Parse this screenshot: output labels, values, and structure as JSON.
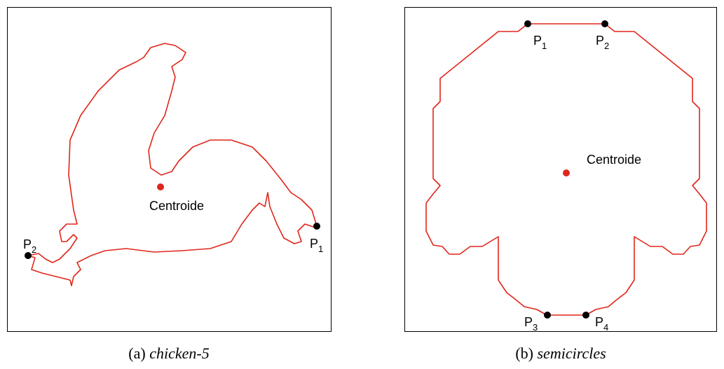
{
  "panels": [
    {
      "centroid_label": "Centroide",
      "points": [
        {
          "base": "P",
          "sub": "1"
        },
        {
          "base": "P",
          "sub": "2"
        }
      ],
      "caption": {
        "tag": "(a)",
        "name": "chicken-5"
      }
    },
    {
      "centroid_label": "Centroide",
      "points": [
        {
          "base": "P",
          "sub": "1"
        },
        {
          "base": "P",
          "sub": "2"
        },
        {
          "base": "P",
          "sub": "3"
        },
        {
          "base": "P",
          "sub": "4"
        }
      ],
      "caption": {
        "tag": "(b)",
        "name": "semicircles"
      }
    }
  ]
}
